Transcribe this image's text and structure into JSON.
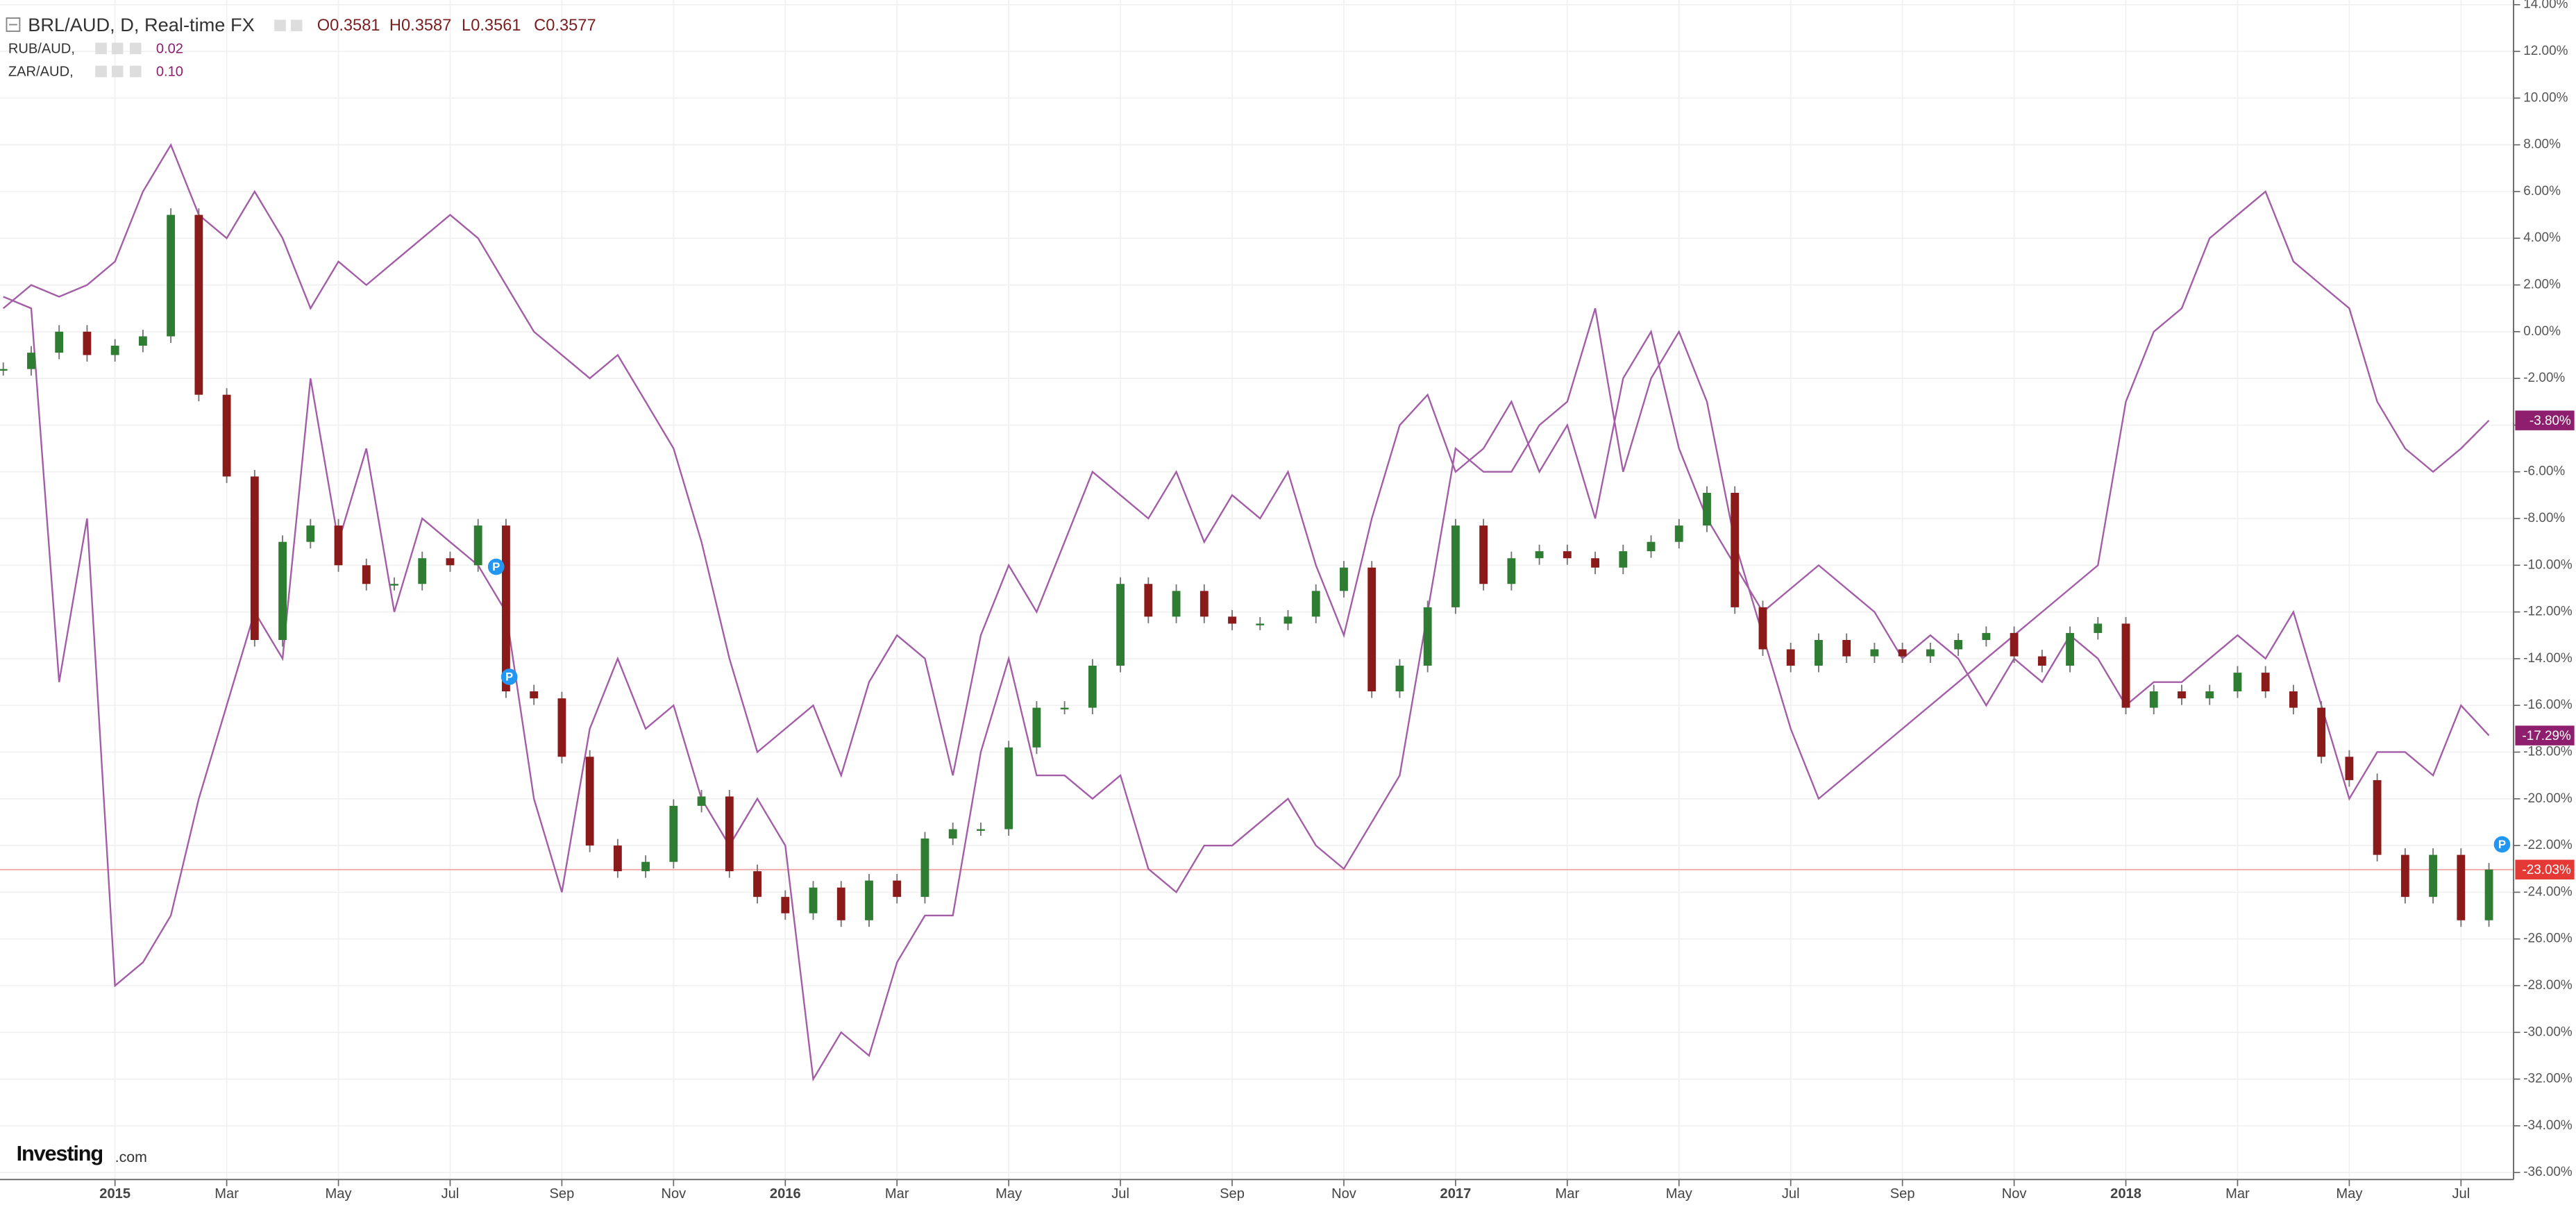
{
  "header": {
    "title": "BRL/AUD, D, Real-time FX",
    "ohlc": [
      "O0.3581",
      "H0.3587",
      "L0.3561",
      "C0.3577"
    ],
    "overlays": [
      {
        "name": "RUB/AUD,",
        "value": "0.02"
      },
      {
        "name": "ZAR/AUD,",
        "value": "0.10"
      }
    ]
  },
  "brand": {
    "name": "Investing",
    "suffix": ".com"
  },
  "event_marker_label": "P",
  "chart_data": {
    "type": "candlestick-compare",
    "up_color": "#2e7d32",
    "down_color": "#8b1a1a",
    "grid": true,
    "categories": [
      null,
      null,
      null,
      null,
      "2015",
      null,
      null,
      null,
      "Mar",
      null,
      null,
      null,
      "May",
      null,
      null,
      null,
      "Jul",
      null,
      null,
      null,
      "Sep",
      null,
      null,
      null,
      "Nov",
      null,
      null,
      null,
      "2016",
      null,
      null,
      null,
      "Mar",
      null,
      null,
      null,
      "May",
      null,
      null,
      null,
      "Jul",
      null,
      null,
      null,
      "Sep",
      null,
      null,
      null,
      "Nov",
      null,
      null,
      null,
      "2017",
      null,
      null,
      null,
      "Mar",
      null,
      null,
      null,
      "May",
      null,
      null,
      null,
      "Jul",
      null,
      null,
      null,
      "Sep",
      null,
      null,
      null,
      "Nov",
      null,
      null,
      null,
      "2018",
      null,
      null,
      null,
      "Mar",
      null,
      null,
      null,
      "May",
      null,
      null,
      null,
      "Jul",
      null
    ],
    "series": [
      {
        "name": "BRL/AUD",
        "color": "#e53935",
        "last_label": "-23.03%",
        "values": [
          -1.6,
          -0.9,
          0,
          -1,
          -0.6,
          -0.2,
          5,
          -2.7,
          -6.2,
          -13.2,
          -9,
          -8.3,
          -10,
          -10.8,
          -10.8,
          -9.7,
          -10,
          -8.3,
          -15.4,
          -15.7,
          -18.2,
          -22,
          -23.1,
          -22.7,
          -20.3,
          -19.9,
          -23.1,
          -24.2,
          -24.9,
          -23.8,
          -25.2,
          -23.5,
          -24.2,
          -21.7,
          -21.3,
          -21.3,
          -17.8,
          -16.1,
          -16.1,
          -14.3,
          -10.8,
          -12.2,
          -11.1,
          -12.2,
          -12.5,
          -12.5,
          -12.2,
          -11.1,
          -10.1,
          -15.4,
          -14.3,
          -11.8,
          -8.3,
          -10.8,
          -9.7,
          -9.4,
          -9.7,
          -10.1,
          -9.4,
          -9,
          -8.3,
          -6.9,
          -11.8,
          -13.6,
          -14.3,
          -13.2,
          -13.9,
          -13.6,
          -13.9,
          -13.6,
          -13.2,
          -12.9,
          -13.9,
          -14.3,
          -12.9,
          -12.5,
          -16.1,
          -15.4,
          -15.7,
          -15.4,
          -14.6,
          -15.4,
          -16.1,
          -18.2,
          -19.2,
          -22.4,
          -24.2,
          -22.4,
          -25.2,
          -23.03
        ]
      },
      {
        "name": "RUB/AUD",
        "color": "#a35ca6",
        "label_color": "#8e1e6e",
        "last_label": "-3.80%",
        "values": [
          1.5,
          1,
          -15,
          -8,
          -28,
          -27,
          -25,
          -20,
          -16,
          -12,
          -14,
          -2,
          -9,
          -5,
          -12,
          -8,
          -9,
          -10,
          -12,
          -20,
          -24,
          -17,
          -14,
          -17,
          -16,
          -20,
          -22,
          -20,
          -22,
          -32,
          -30,
          -31,
          -27,
          -25,
          -25,
          -18,
          -14,
          -19,
          -19,
          -20,
          -19,
          -23,
          -24,
          -22,
          -22,
          -21,
          -20,
          -22,
          -23,
          -21,
          -19,
          -12,
          -5,
          -6,
          -6,
          -4,
          -3,
          1,
          -6,
          -2,
          0,
          -3,
          -9,
          -13,
          -17,
          -20,
          -19,
          -18,
          -17,
          -16,
          -15,
          -14,
          -13,
          -12,
          -11,
          -10,
          -3,
          0,
          1,
          4,
          5,
          6,
          3,
          2,
          1,
          -3,
          -5,
          -6,
          -5,
          -3.8
        ]
      },
      {
        "name": "ZAR/AUD",
        "color": "#a35ca6",
        "label_color": "#8e1e6e",
        "last_label": "-17.29%",
        "values": [
          1,
          2,
          1.5,
          2,
          3,
          6,
          8,
          5,
          4,
          6,
          4,
          1,
          3,
          2,
          3,
          4,
          5,
          4,
          2,
          0,
          -1,
          -2,
          -1,
          -3,
          -5,
          -9,
          -14,
          -18,
          -17,
          -16,
          -19,
          -15,
          -13,
          -14,
          -19,
          -13,
          -10,
          -12,
          -9,
          -6,
          -7,
          -8,
          -6,
          -9,
          -7,
          -8,
          -6,
          -10,
          -13,
          -8,
          -4,
          -2.7,
          -6,
          -5,
          -3,
          -6,
          -4,
          -8,
          -2,
          0,
          -5,
          -8,
          -10,
          -12,
          -11,
          -10,
          -11,
          -12,
          -14,
          -13,
          -14,
          -16,
          -14,
          -15,
          -13,
          -14,
          -16,
          -15,
          -15,
          -14,
          -13,
          -14,
          -12,
          -16,
          -20,
          -18,
          -18,
          -19,
          -16,
          -17.29
        ]
      }
    ],
    "ylim": [
      -36.3,
      14.2
    ],
    "yticks": [
      {
        "value": 14,
        "label": "14.00%"
      },
      {
        "value": 12,
        "label": "12.00%"
      },
      {
        "value": 10,
        "label": "10.00%"
      },
      {
        "value": 8,
        "label": "8.00%"
      },
      {
        "value": 6,
        "label": "6.00%"
      },
      {
        "value": 4,
        "label": "4.00%"
      },
      {
        "value": 2,
        "label": "2.00%"
      },
      {
        "value": 0,
        "label": "0.00%"
      },
      {
        "value": -2,
        "label": "-2.00%"
      },
      {
        "value": -4,
        "label": "-4.00%"
      },
      {
        "value": -6,
        "label": "-6.00%"
      },
      {
        "value": -8,
        "label": "-8.00%"
      },
      {
        "value": -10,
        "label": "-10.00%"
      },
      {
        "value": -12,
        "label": "-12.00%"
      },
      {
        "value": -14,
        "label": "-14.00%"
      },
      {
        "value": -16,
        "label": "-16.00%"
      },
      {
        "value": -18,
        "label": "-18.00%"
      },
      {
        "value": -20,
        "label": "-20.00%"
      },
      {
        "value": -22,
        "label": "-22.00%"
      },
      {
        "value": -24,
        "label": "-24.00%"
      },
      {
        "value": -26,
        "label": "-26.00%"
      },
      {
        "value": -28,
        "label": "-28.00%"
      },
      {
        "value": -30,
        "label": "-30.00%"
      },
      {
        "value": -32,
        "label": "-32.00%"
      },
      {
        "value": -34,
        "label": "-34.00%"
      },
      {
        "value": -36,
        "label": "-36.00%"
      }
    ]
  }
}
